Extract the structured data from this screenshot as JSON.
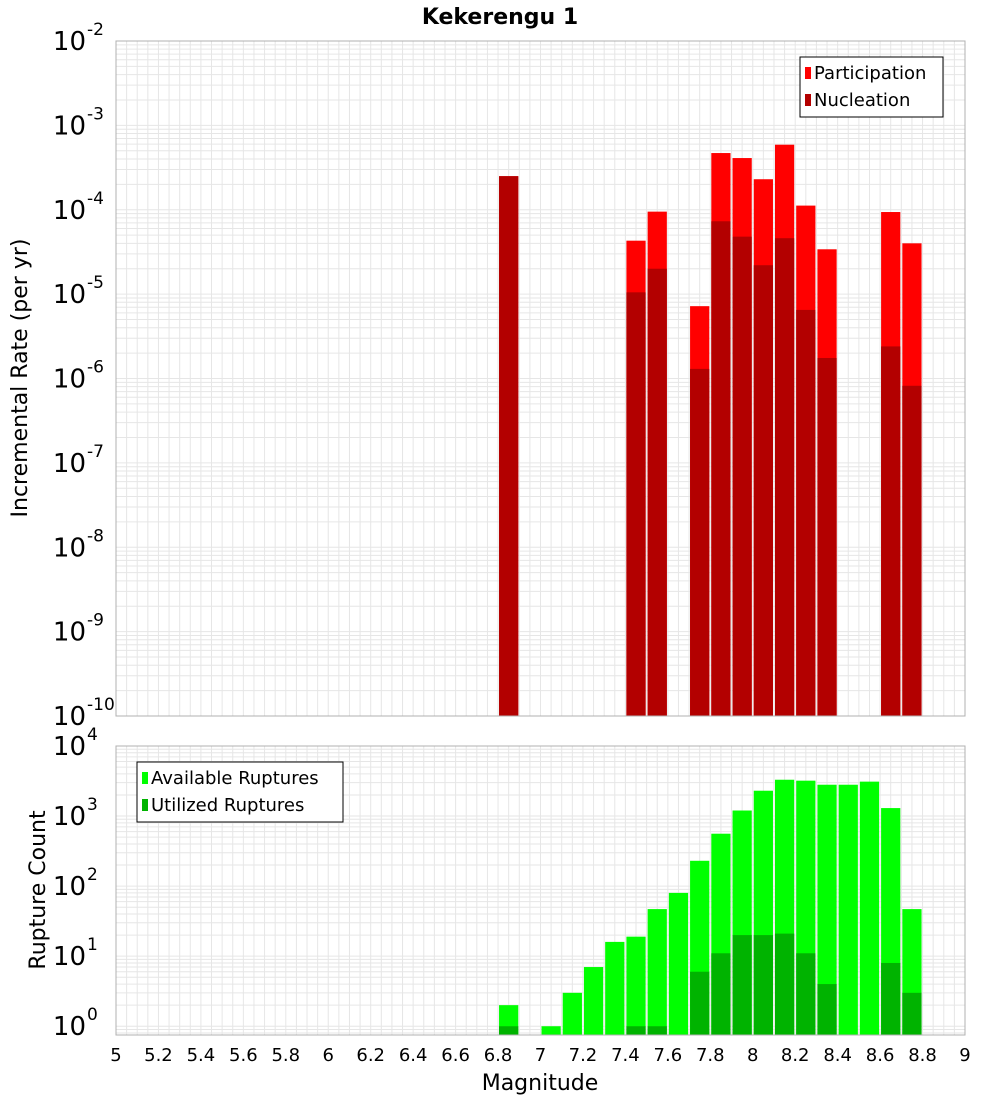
{
  "title": "Kekerengu 1",
  "xlabel": "Magnitude",
  "colors": {
    "participation": "#ff0000",
    "nucleation": "#b30000",
    "available": "#00ff00",
    "utilized": "#00b300",
    "grid": "#e6e6e6",
    "frame": "#b0b0b0"
  },
  "chart_data": [
    {
      "type": "bar",
      "ylabel": "Incremental Rate (per yr)",
      "yscale": "log",
      "ylim": [
        1e-10,
        0.01
      ],
      "xlim": [
        5,
        9
      ],
      "bar_width": 0.1,
      "grid": true,
      "legend_position": "top-right",
      "x_ticks": [
        "5",
        "5.2",
        "5.4",
        "5.6",
        "5.8",
        "6",
        "6.2",
        "6.4",
        "6.6",
        "6.8",
        "7",
        "7.2",
        "7.4",
        "7.6",
        "7.8",
        "8",
        "8.2",
        "8.4",
        "8.6",
        "8.8",
        "9"
      ],
      "y_ticks": [
        {
          "base": "10",
          "exp": "-2"
        },
        {
          "base": "10",
          "exp": "-3"
        },
        {
          "base": "10",
          "exp": "-4"
        },
        {
          "base": "10",
          "exp": "-5"
        },
        {
          "base": "10",
          "exp": "-6"
        },
        {
          "base": "10",
          "exp": "-7"
        },
        {
          "base": "10",
          "exp": "-8"
        },
        {
          "base": "10",
          "exp": "-9"
        },
        {
          "base": "10",
          "exp": "-10"
        }
      ],
      "x": [
        6.85,
        7.45,
        7.55,
        7.75,
        7.85,
        7.95,
        8.05,
        8.15,
        8.25,
        8.35,
        8.65,
        8.75
      ],
      "series": [
        {
          "name": "Participation",
          "values": [
            0.00025,
            4.3e-05,
            9.5e-05,
            7.2e-06,
            0.00047,
            0.00041,
            0.00023,
            0.00059,
            0.000112,
            3.4e-05,
            9.4e-05,
            4e-05
          ]
        },
        {
          "name": "Nucleation",
          "values": [
            0.00025,
            1.05e-05,
            2e-05,
            1.3e-06,
            7.3e-05,
            4.8e-05,
            2.2e-05,
            4.6e-05,
            6.5e-06,
            1.75e-06,
            2.4e-06,
            8.2e-07
          ]
        }
      ]
    },
    {
      "type": "bar",
      "ylabel": "Rupture Count",
      "yscale": "log",
      "ylim": [
        0.75,
        10000
      ],
      "xlim": [
        5,
        9
      ],
      "bar_width": 0.1,
      "grid": true,
      "legend_position": "top-left",
      "x_ticks": [
        "5",
        "5.2",
        "5.4",
        "5.6",
        "5.8",
        "6",
        "6.2",
        "6.4",
        "6.6",
        "6.8",
        "7",
        "7.2",
        "7.4",
        "7.6",
        "7.8",
        "8",
        "8.2",
        "8.4",
        "8.6",
        "8.8",
        "9"
      ],
      "y_ticks": [
        {
          "base": "10",
          "exp": "4"
        },
        {
          "base": "10",
          "exp": "3"
        },
        {
          "base": "10",
          "exp": "2"
        },
        {
          "base": "10",
          "exp": "1"
        },
        {
          "base": "10",
          "exp": "0"
        }
      ],
      "x": [
        6.85,
        7.05,
        7.15,
        7.25,
        7.35,
        7.45,
        7.55,
        7.65,
        7.75,
        7.85,
        7.95,
        8.05,
        8.15,
        8.25,
        8.35,
        8.45,
        8.55,
        8.65,
        8.75
      ],
      "series": [
        {
          "name": "Available Ruptures",
          "values": [
            2,
            1,
            3,
            7,
            16,
            19,
            47,
            80,
            230,
            560,
            1200,
            2300,
            3300,
            3200,
            2800,
            2800,
            3100,
            1300,
            47
          ]
        },
        {
          "name": "Utilized Ruptures",
          "values": [
            1,
            0,
            0,
            0,
            0,
            1,
            1,
            0,
            6,
            11,
            20,
            20,
            21,
            11,
            4,
            0,
            0,
            8,
            3
          ]
        }
      ]
    }
  ]
}
